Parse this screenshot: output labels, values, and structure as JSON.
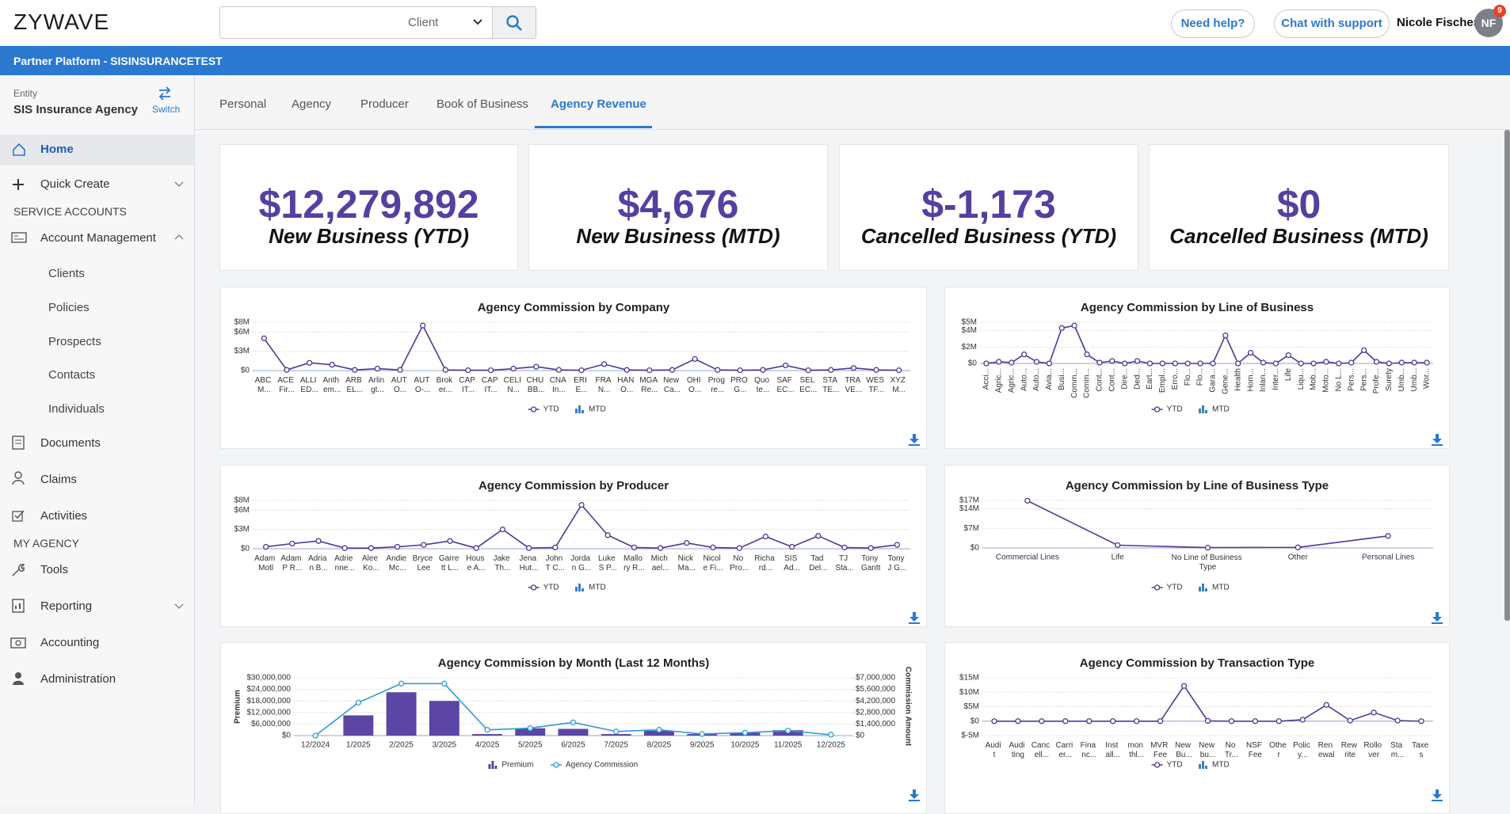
{
  "header": {
    "logo": "ZYWAVE",
    "search_filter": "Client",
    "help_button": "Need help?",
    "chat_button": "Chat with support",
    "user_name": "Nicole Fischer",
    "user_initials": "NF",
    "notification_count": "9"
  },
  "banner": {
    "title": "Partner Platform - SISINSURANCETEST"
  },
  "sidebar": {
    "entity_label": "Entity",
    "entity_name": "SIS Insurance Agency",
    "switch": "Switch",
    "items": [
      "Home",
      "Quick Create",
      "SERVICE ACCOUNTS",
      "Account Management",
      "Clients",
      "Policies",
      "Prospects",
      "Contacts",
      "Individuals",
      "Documents",
      "Claims",
      "Activities",
      "MY AGENCY",
      "Tools",
      "Reporting",
      "Accounting",
      "Administration"
    ]
  },
  "tabs": [
    "Personal",
    "Agency",
    "Producer",
    "Book of Business",
    "Agency Revenue"
  ],
  "kpis": [
    {
      "value": "$12,279,892",
      "label": "New Business (YTD)"
    },
    {
      "value": "$4,676",
      "label": "New Business (MTD)"
    },
    {
      "value": "$-1,173",
      "label": "Cancelled Business (YTD)"
    },
    {
      "value": "$0",
      "label": "Cancelled Business (MTD)"
    }
  ],
  "chart_data": [
    {
      "type": "line",
      "title": "Agency Commission by Company",
      "categories": [
        "ABC M...",
        "ACE Fir...",
        "ALLI ED...",
        "Anth em...",
        "ARB EL...",
        "Arlin gt...",
        "AUT O...",
        "AUT O-...",
        "Brok er...",
        "CAP IT...",
        "CAP IT...",
        "CELI N...",
        "CHU BB...",
        "CNA In...",
        "ERI E...",
        "FRA N...",
        "HAN O...",
        "MGA Re...",
        "New Ca...",
        "OHI O...",
        "Prog re...",
        "PRO G...",
        "Quo te...",
        "SAF EC...",
        "SEL EC...",
        "STA TE...",
        "TRA VE...",
        "WES TF...",
        "XYZ M..."
      ],
      "series": [
        {
          "name": "YTD",
          "type": "line",
          "color": "#4a3a97",
          "values": [
            5000000,
            100000,
            1200000,
            900000,
            100000,
            300000,
            100000,
            7000000,
            100000,
            50000,
            50000,
            300000,
            600000,
            100000,
            50000,
            1000000,
            100000,
            50000,
            100000,
            1800000,
            100000,
            50000,
            100000,
            800000,
            50000,
            100000,
            400000,
            100000,
            50000
          ]
        },
        {
          "name": "MTD",
          "type": "bar",
          "color": "#3b7fc4",
          "values": [
            0,
            0,
            0,
            0,
            0,
            0,
            0,
            0,
            0,
            0,
            0,
            0,
            0,
            0,
            0,
            0,
            0,
            0,
            0,
            0,
            0,
            0,
            0,
            0,
            0,
            0,
            0,
            0,
            0
          ]
        }
      ],
      "ylim": [
        0,
        7500000
      ],
      "yticks": [
        {
          "value": 0,
          "label": "$0"
        },
        {
          "value": 3000000,
          "label": "$3M"
        },
        {
          "value": 6000000,
          "label": "$6M"
        },
        {
          "value": 7500000,
          "label": "$8M"
        }
      ],
      "grid": true
    },
    {
      "type": "line",
      "title": "Agency Commission by Line of Business",
      "categories": [
        "Acci...",
        "Agric...",
        "Agric...",
        "Auto...",
        "Auto...",
        "Avia...",
        "Busi...",
        "Comm...",
        "Comm...",
        "Cont...",
        "Cont...",
        "Dire...",
        "Ded...",
        "Eart...",
        "Empl...",
        "Erro...",
        "Flo...",
        "Flo...",
        "Gara...",
        "Gene...",
        "Health",
        "Hom...",
        "Inlan...",
        "Inter...",
        "Life",
        "Liqu...",
        "Mob...",
        "Moto...",
        "No L...",
        "Pers...",
        "Pers...",
        "Profe...",
        "Surety",
        "Umb...",
        "Umb...",
        "Wor..."
      ],
      "series": [
        {
          "name": "YTD",
          "type": "line",
          "color": "#4a3a97",
          "values": [
            0,
            200000,
            100000,
            1100000,
            200000,
            0,
            4300000,
            4600000,
            1100000,
            100000,
            300000,
            0,
            300000,
            0,
            0,
            0,
            0,
            0,
            0,
            3400000,
            0,
            1300000,
            100000,
            0,
            1000000,
            0,
            0,
            200000,
            0,
            100000,
            1600000,
            200000,
            0,
            100000,
            100000,
            100000
          ]
        },
        {
          "name": "MTD",
          "type": "bar",
          "color": "#3b7fc4",
          "values": [
            0,
            0,
            0,
            0,
            0,
            0,
            0,
            0,
            0,
            0,
            0,
            0,
            0,
            0,
            0,
            0,
            0,
            0,
            0,
            0,
            0,
            0,
            0,
            0,
            0,
            0,
            0,
            0,
            0,
            0,
            0,
            0,
            0,
            0,
            0,
            0
          ]
        }
      ],
      "ylim": [
        0,
        5000000
      ],
      "yticks": [
        {
          "value": 0,
          "label": "$0"
        },
        {
          "value": 2000000,
          "label": "$2M"
        },
        {
          "value": 4000000,
          "label": "$4M"
        },
        {
          "value": 5000000,
          "label": "$5M"
        }
      ],
      "grid": true
    },
    {
      "type": "line",
      "title": "Agency Commission by Producer",
      "categories": [
        "Adam Motl",
        "Adam P R...",
        "Adria n B...",
        "Adrie nne...",
        "Alee Ko...",
        "Andie Mc...",
        "Bryce Lee",
        "Garre tt L...",
        "Hous e A...",
        "Jake Th...",
        "Jena Hut...",
        "John T C...",
        "Jorda n G...",
        "Luke S P...",
        "Mallo ry R...",
        "Mich ael...",
        "Nick Ma...",
        "Nicol e Fi...",
        "No Pro...",
        "Richa rd...",
        "SIS Ad...",
        "Tad Del...",
        "TJ Sta...",
        "Tony Gantt",
        "Tony J G..."
      ],
      "series": [
        {
          "name": "YTD",
          "type": "line",
          "color": "#4a3a97",
          "values": [
            300000,
            800000,
            1200000,
            100000,
            100000,
            300000,
            600000,
            1200000,
            100000,
            3000000,
            100000,
            200000,
            6800000,
            2100000,
            200000,
            100000,
            900000,
            200000,
            100000,
            1900000,
            300000,
            2000000,
            200000,
            100000,
            600000
          ]
        },
        {
          "name": "MTD",
          "type": "bar",
          "color": "#3b7fc4",
          "values": [
            0,
            0,
            0,
            0,
            0,
            0,
            0,
            0,
            0,
            0,
            0,
            0,
            0,
            0,
            0,
            0,
            0,
            0,
            0,
            0,
            0,
            0,
            0,
            0,
            0
          ]
        }
      ],
      "ylim": [
        0,
        7500000
      ],
      "yticks": [
        {
          "value": 0,
          "label": "$0"
        },
        {
          "value": 3000000,
          "label": "$3M"
        },
        {
          "value": 6000000,
          "label": "$6M"
        },
        {
          "value": 7500000,
          "label": "$8M"
        }
      ],
      "grid": true
    },
    {
      "type": "line",
      "title": "Agency Commission by Line of Business Type",
      "categories": [
        "Commercial Lines",
        "Life",
        "No Line of Business Type",
        "Other",
        "Personal Lines"
      ],
      "series": [
        {
          "name": "YTD",
          "type": "line",
          "color": "#4a3a97",
          "values": [
            16900000,
            1000000,
            100000,
            200000,
            4300000
          ]
        },
        {
          "name": "MTD",
          "type": "bar",
          "color": "#3b7fc4",
          "values": [
            0,
            0,
            0,
            0,
            0
          ]
        }
      ],
      "ylim": [
        0,
        17000000
      ],
      "yticks": [
        {
          "value": 0,
          "label": "$0"
        },
        {
          "value": 7000000,
          "label": "$7M"
        },
        {
          "value": 14000000,
          "label": "$14M"
        },
        {
          "value": 17000000,
          "label": "$17M"
        }
      ],
      "grid": true
    },
    {
      "type": "bar",
      "title": "Agency Commission by Month (Last 12 Months)",
      "ylabel": "Premium",
      "y2label": "Commission Amount",
      "categories": [
        "12/2024",
        "1/2025",
        "2/2025",
        "3/2025",
        "4/2025",
        "5/2025",
        "6/2025",
        "7/2025",
        "8/2025",
        "9/2025",
        "10/2025",
        "11/2025",
        "12/2025"
      ],
      "series": [
        {
          "name": "Premium",
          "type": "bar",
          "color": "#5b46a6",
          "values": [
            0,
            10500000,
            22500000,
            18000000,
            800000,
            3800000,
            3500000,
            800000,
            2500000,
            800000,
            1500000,
            2800000,
            0
          ]
        },
        {
          "name": "Agency Commission",
          "type": "line",
          "axis": "y2",
          "color": "#2e9bd6",
          "values": [
            0,
            4000000,
            6300000,
            6300000,
            700000,
            900000,
            1600000,
            500000,
            700000,
            200000,
            350000,
            600000,
            100000
          ]
        }
      ],
      "ylim": [
        0,
        30000000
      ],
      "yticks": [
        {
          "value": 0,
          "label": "$0"
        },
        {
          "value": 6000000,
          "label": "$6,000,000"
        },
        {
          "value": 12000000,
          "label": "$12,000,000"
        },
        {
          "value": 18000000,
          "label": "$18,000,000"
        },
        {
          "value": 24000000,
          "label": "$24,000,000"
        },
        {
          "value": 30000000,
          "label": "$30,000,000"
        }
      ],
      "y2lim": [
        0,
        7000000
      ],
      "y2ticks": [
        {
          "value": 0,
          "label": "$0"
        },
        {
          "value": 1400000,
          "label": "$1,400,000"
        },
        {
          "value": 2800000,
          "label": "$2,800,000"
        },
        {
          "value": 4200000,
          "label": "$4,200,000"
        },
        {
          "value": 5600000,
          "label": "$5,600,000"
        },
        {
          "value": 7000000,
          "label": "$7,000,000"
        }
      ],
      "grid": true
    },
    {
      "type": "line",
      "title": "Agency Commission by Transaction Type",
      "categories": [
        "Audi t",
        "Audi ting",
        "Canc ell...",
        "Carri er...",
        "Fina nc...",
        "Inst all...",
        "mon thl...",
        "MVR Fee",
        "New Bu...",
        "New bu...",
        "No Tr...",
        "NSF Fee",
        "Othe r",
        "Polic y...",
        "Ren ewal",
        "Rew rite",
        "Rollo ver",
        "Sta m...",
        "Taxe s"
      ],
      "series": [
        {
          "name": "YTD",
          "type": "line",
          "color": "#4a3a97",
          "values": [
            0,
            0,
            0,
            0,
            0,
            0,
            0,
            0,
            12200000,
            100000,
            0,
            0,
            0,
            500000,
            5600000,
            200000,
            3000000,
            200000,
            0
          ]
        },
        {
          "name": "MTD",
          "type": "bar",
          "color": "#3b7fc4",
          "values": [
            0,
            0,
            0,
            0,
            0,
            0,
            0,
            0,
            0,
            0,
            0,
            0,
            0,
            0,
            0,
            0,
            0,
            0,
            0
          ]
        }
      ],
      "ylim": [
        -5000000,
        15000000
      ],
      "yticks": [
        {
          "value": -5000000,
          "label": "$-5M"
        },
        {
          "value": 0,
          "label": "$0"
        },
        {
          "value": 5000000,
          "label": "$5M"
        },
        {
          "value": 10000000,
          "label": "$10M"
        },
        {
          "value": 15000000,
          "label": "$15M"
        }
      ],
      "grid": true
    }
  ]
}
